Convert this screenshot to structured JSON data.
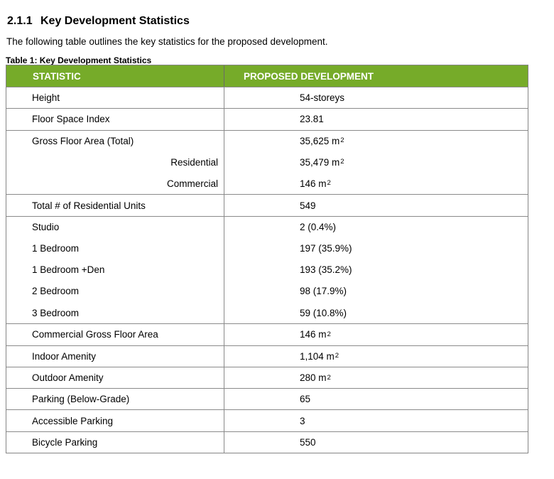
{
  "document": {
    "section_number": "2.1.1",
    "section_title": "Key Development Statistics",
    "intro": "The following table outlines the key statistics for the proposed development.",
    "table_caption": "Table 1: Key Development Statistics"
  },
  "table": {
    "header_bg_color": "#76AB29",
    "header_text_color": "#FFFFFF",
    "border_color": "#8A8A8A",
    "columns": [
      "STATISTIC",
      "PROPOSED DEVELOPMENT"
    ],
    "lines": [
      {
        "label": "Height",
        "value": "54-storeys",
        "sup": ""
      },
      {
        "label": "Floor Space Index",
        "value": "23.81",
        "sup": ""
      },
      {
        "label": "Gross Floor Area (Total)",
        "value": "35,625 m",
        "sup": "2"
      },
      {
        "label": "Residential",
        "value": "35,479 m",
        "sup": "2"
      },
      {
        "label": "Commercial",
        "value": "146 m",
        "sup": "2"
      },
      {
        "label": "Total # of Residential Units",
        "value": "549",
        "sup": ""
      },
      {
        "label": "Studio",
        "value": "2 (0.4%)",
        "sup": ""
      },
      {
        "label": "1 Bedroom",
        "value": "197 (35.9%)",
        "sup": ""
      },
      {
        "label": "1 Bedroom +Den",
        "value": "193 (35.2%)",
        "sup": ""
      },
      {
        "label": "2 Bedroom",
        "value": "98 (17.9%)",
        "sup": ""
      },
      {
        "label": "3 Bedroom",
        "value": "59 (10.8%)",
        "sup": ""
      },
      {
        "label": "Commercial Gross Floor Area",
        "value": "146 m",
        "sup": "2"
      },
      {
        "label": "Indoor Amenity",
        "value": "1,104 m",
        "sup": "2"
      },
      {
        "label": "Outdoor Amenity",
        "value": "280 m",
        "sup": "2"
      },
      {
        "label": "Parking (Below-Grade)",
        "value": "65",
        "sup": ""
      },
      {
        "label": "Accessible Parking",
        "value": "3",
        "sup": ""
      },
      {
        "label": "Bicycle Parking",
        "value": "550",
        "sup": ""
      }
    ]
  }
}
